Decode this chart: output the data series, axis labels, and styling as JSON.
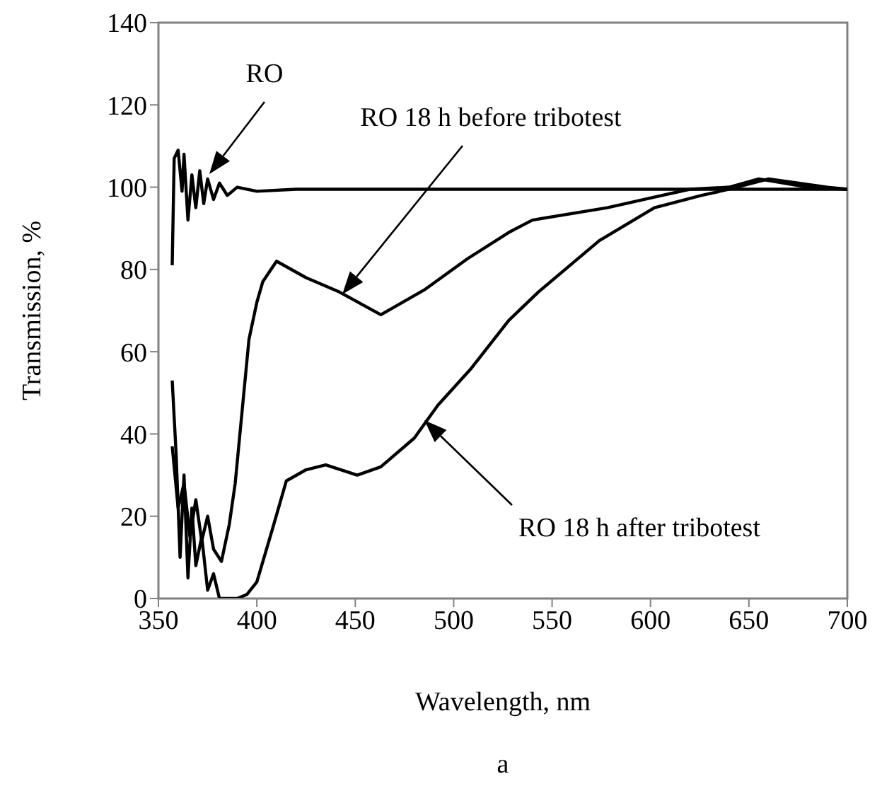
{
  "chart_data": {
    "type": "line",
    "xlabel": "Wavelength, nm",
    "ylabel": "Transmission, %",
    "xlim": [
      350,
      700
    ],
    "xticks": [
      350,
      400,
      450,
      500,
      550,
      600,
      650,
      700
    ],
    "ylim": [
      0,
      140
    ],
    "yticks": [
      0,
      20,
      40,
      60,
      80,
      100,
      120,
      140
    ],
    "grid": false,
    "legend": false,
    "marker": "none",
    "line_style": "solid",
    "series": [
      {
        "color": "#000000",
        "x": [
          357,
          358,
          360,
          362,
          363,
          365,
          367,
          369,
          371,
          373,
          375,
          378,
          381,
          385,
          390,
          400,
          420,
          500,
          600,
          640,
          700
        ],
        "values": [
          81,
          107,
          109,
          99,
          108,
          92,
          103,
          95,
          104,
          96,
          102,
          97,
          101,
          98,
          100,
          99,
          99.5,
          99.5,
          99.5,
          99.5,
          99.5
        ]
      },
      {
        "color": "#000000",
        "x": [
          357,
          360,
          363,
          366,
          369,
          372,
          375,
          378,
          382,
          386,
          389,
          393,
          396,
          400,
          403,
          410,
          425,
          442,
          463,
          485,
          507,
          528,
          540,
          578,
          602,
          620,
          640,
          655,
          680,
          700
        ],
        "values": [
          37,
          22,
          28,
          15,
          24,
          14,
          20,
          12,
          9,
          18,
          28,
          48,
          63,
          72,
          77,
          82,
          78,
          74.5,
          69,
          75,
          82.6,
          89,
          92,
          95,
          97.6,
          99.5,
          100,
          102,
          100,
          99.5
        ]
      },
      {
        "color": "#000000",
        "x": [
          357,
          359,
          361,
          363,
          365,
          367,
          369,
          372,
          375,
          378,
          381,
          385,
          390,
          395,
          400,
          408,
          415,
          425,
          435,
          451,
          463,
          480,
          492,
          509,
          528,
          543,
          574,
          602,
          626,
          640,
          660,
          690,
          700
        ],
        "values": [
          53,
          35,
          10,
          30,
          5,
          22,
          8,
          15,
          2,
          6,
          0,
          0,
          0,
          1,
          4,
          17,
          28.6,
          31.3,
          32.5,
          30,
          32,
          39,
          47,
          56,
          67.6,
          74.5,
          87,
          95,
          98,
          99.5,
          102,
          100,
          99.5
        ]
      }
    ],
    "annotations": [
      "RO",
      "RO 18 h before tribotest",
      "RO 18 h after tribotest",
      "a"
    ]
  }
}
